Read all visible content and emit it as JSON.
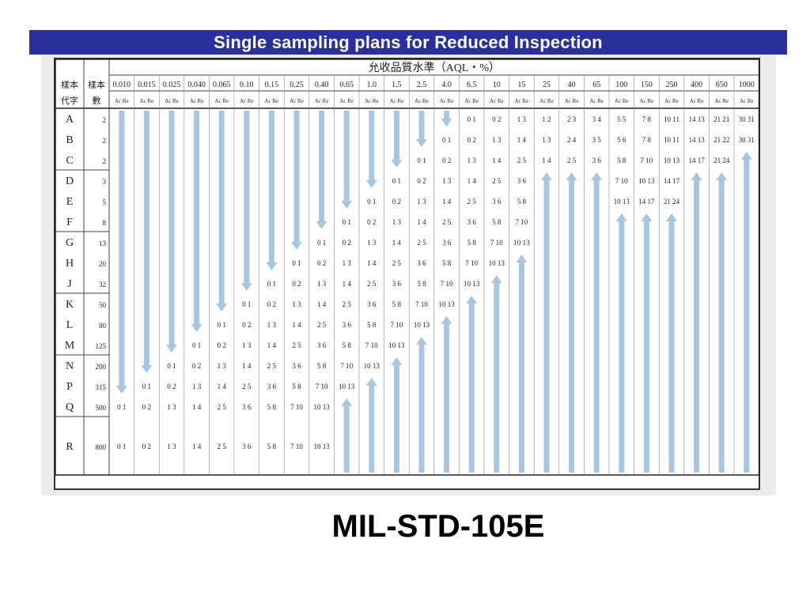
{
  "slide": {
    "title": "Single sampling plans for Reduced Inspection",
    "footer_title": "MIL-STD-105E"
  },
  "table": {
    "header_group": "允收品質水準（AQL・%）",
    "col_code_header": "樣本代字",
    "col_size_header": "樣本數",
    "ac_re_label": "Ac Re",
    "aql_levels": [
      "0.010",
      "0.015",
      "0.025",
      "0.040",
      "0.065",
      "0.10",
      "0.15",
      "0.25",
      "0.40",
      "0.65",
      "1.0",
      "1.5",
      "2.5",
      "4.0",
      "6.5",
      "10",
      "15",
      "25",
      "40",
      "65",
      "100",
      "150",
      "250",
      "400",
      "650",
      "1000"
    ],
    "rows": [
      {
        "code": "A",
        "size": "2"
      },
      {
        "code": "B",
        "size": "2"
      },
      {
        "code": "C",
        "size": "2"
      },
      {
        "code": "D",
        "size": "3"
      },
      {
        "code": "E",
        "size": "5"
      },
      {
        "code": "F",
        "size": "8"
      },
      {
        "code": "G",
        "size": "13"
      },
      {
        "code": "H",
        "size": "20"
      },
      {
        "code": "J",
        "size": "32"
      },
      {
        "code": "K",
        "size": "50"
      },
      {
        "code": "L",
        "size": "80"
      },
      {
        "code": "M",
        "size": "125"
      },
      {
        "code": "N",
        "size": "200"
      },
      {
        "code": "P",
        "size": "315"
      },
      {
        "code": "Q",
        "size": "500"
      },
      {
        "code": "R",
        "size": "800"
      }
    ],
    "sequence": [
      "0 1",
      "0 2",
      "1 3",
      "1 4",
      "2 5",
      "3 6",
      "5 8",
      "7 10",
      "10 13"
    ],
    "high_aql_values": {
      "25": [
        "1 2",
        "1 3",
        "1 4"
      ],
      "40": [
        "2 3",
        "2 4",
        "2 5"
      ],
      "65": [
        "3 4",
        "3 5",
        "3 6"
      ],
      "100": [
        "5 5",
        "5 6",
        "5 8",
        "7 10",
        "10 13"
      ],
      "150": [
        "7 8",
        "7 8",
        "7 10",
        "10 13",
        "14 17"
      ],
      "250": [
        "10 11",
        "10 11",
        "10 13",
        "14 17",
        "21 24"
      ],
      "400": [
        "14 13",
        "14 13",
        "14 17"
      ],
      "650": [
        "21 21",
        "21 22",
        "21 24"
      ],
      "1000": [
        "30 31",
        "30 31"
      ]
    },
    "arrow_color": "#a9c6df"
  }
}
